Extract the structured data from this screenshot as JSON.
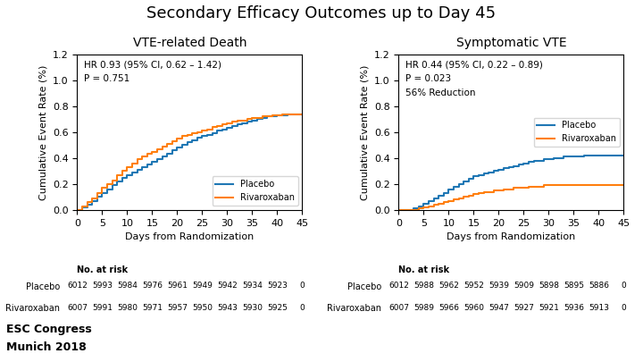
{
  "title": "Secondary Efficacy Outcomes up to Day 45",
  "annotations": [
    "ESC Congress",
    "Munich 2018"
  ],
  "chart_data": [
    {
      "type": "step",
      "title": "VTE-related Death",
      "xlabel": "Days from Randomization",
      "ylabel": "Cumulative Event Rate (%)",
      "xlim": [
        0,
        45
      ],
      "ylim": [
        0,
        1.2
      ],
      "xticks": [
        0,
        5,
        10,
        15,
        20,
        25,
        30,
        35,
        40,
        45
      ],
      "yticks": [
        0.0,
        0.2,
        0.4,
        0.6,
        0.8,
        1.0,
        1.2
      ],
      "legend": "lower right",
      "annotations": [
        "HR 0.93 (95% CI, 0.62 – 1.42)",
        "P = 0.751"
      ],
      "series": [
        {
          "name": "Placebo",
          "x": [
            0,
            1,
            2,
            3,
            4,
            5,
            6,
            7,
            8,
            9,
            10,
            11,
            12,
            13,
            14,
            15,
            16,
            17,
            18,
            19,
            20,
            21,
            22,
            23,
            24,
            25,
            26,
            27,
            28,
            29,
            30,
            31,
            32,
            33,
            34,
            35,
            36,
            37,
            38,
            39,
            40,
            41,
            42,
            43,
            44,
            45
          ],
          "values": [
            0.0,
            0.02,
            0.04,
            0.07,
            0.1,
            0.13,
            0.16,
            0.19,
            0.22,
            0.25,
            0.27,
            0.29,
            0.31,
            0.33,
            0.35,
            0.37,
            0.39,
            0.41,
            0.43,
            0.46,
            0.48,
            0.5,
            0.52,
            0.54,
            0.56,
            0.57,
            0.58,
            0.59,
            0.61,
            0.62,
            0.63,
            0.65,
            0.66,
            0.67,
            0.68,
            0.69,
            0.7,
            0.71,
            0.72,
            0.72,
            0.73,
            0.73,
            0.74,
            0.74,
            0.74,
            0.74
          ]
        },
        {
          "name": "Rivaroxaban",
          "x": [
            0,
            1,
            2,
            3,
            4,
            5,
            6,
            7,
            8,
            9,
            10,
            11,
            12,
            13,
            14,
            15,
            16,
            17,
            18,
            19,
            20,
            21,
            22,
            23,
            24,
            25,
            26,
            27,
            28,
            29,
            30,
            31,
            32,
            33,
            34,
            35,
            36,
            37,
            38,
            39,
            40,
            41,
            42,
            43,
            44,
            45
          ],
          "values": [
            0.0,
            0.03,
            0.06,
            0.09,
            0.13,
            0.17,
            0.2,
            0.23,
            0.27,
            0.3,
            0.33,
            0.36,
            0.39,
            0.41,
            0.43,
            0.45,
            0.47,
            0.49,
            0.51,
            0.53,
            0.55,
            0.57,
            0.58,
            0.59,
            0.6,
            0.61,
            0.62,
            0.64,
            0.65,
            0.66,
            0.67,
            0.68,
            0.69,
            0.69,
            0.7,
            0.71,
            0.71,
            0.72,
            0.72,
            0.73,
            0.73,
            0.74,
            0.74,
            0.74,
            0.74,
            0.74
          ]
        }
      ],
      "risk_table": {
        "title": "No. at risk",
        "rows": [
          {
            "name": "Placebo",
            "values": [
              6012,
              5993,
              5984,
              5976,
              5961,
              5949,
              5942,
              5934,
              5923,
              0
            ]
          },
          {
            "name": "Rivaroxaban",
            "values": [
              6007,
              5991,
              5980,
              5971,
              5957,
              5950,
              5943,
              5930,
              5925,
              0
            ]
          }
        ]
      }
    },
    {
      "type": "step",
      "title": "Symptomatic VTE",
      "xlabel": "Days from Randomization",
      "ylabel": "Cumulative Event Rate (%)",
      "xlim": [
        0,
        45
      ],
      "ylim": [
        0,
        1.2
      ],
      "xticks": [
        0,
        5,
        10,
        15,
        20,
        25,
        30,
        35,
        40,
        45
      ],
      "yticks": [
        0.0,
        0.2,
        0.4,
        0.6,
        0.8,
        1.0,
        1.2
      ],
      "legend": "center right",
      "annotations": [
        "HR 0.44 (95% CI, 0.22 – 0.89)",
        "P = 0.023",
        "56% Reduction"
      ],
      "series": [
        {
          "name": "Placebo",
          "x": [
            0,
            1,
            2,
            3,
            4,
            5,
            6,
            7,
            8,
            9,
            10,
            11,
            12,
            13,
            14,
            15,
            16,
            17,
            18,
            19,
            20,
            21,
            22,
            23,
            24,
            25,
            26,
            27,
            28,
            29,
            30,
            31,
            32,
            33,
            34,
            35,
            36,
            37,
            38,
            39,
            40,
            41,
            42,
            43,
            44,
            45
          ],
          "values": [
            0.0,
            0.0,
            0.0,
            0.01,
            0.03,
            0.05,
            0.07,
            0.09,
            0.11,
            0.13,
            0.16,
            0.18,
            0.2,
            0.22,
            0.24,
            0.26,
            0.27,
            0.28,
            0.29,
            0.3,
            0.31,
            0.32,
            0.33,
            0.34,
            0.35,
            0.36,
            0.37,
            0.38,
            0.38,
            0.39,
            0.39,
            0.4,
            0.4,
            0.41,
            0.41,
            0.41,
            0.41,
            0.42,
            0.42,
            0.42,
            0.42,
            0.42,
            0.42,
            0.42,
            0.42,
            0.42
          ]
        },
        {
          "name": "Rivaroxaban",
          "x": [
            0,
            1,
            2,
            3,
            4,
            5,
            6,
            7,
            8,
            9,
            10,
            11,
            12,
            13,
            14,
            15,
            16,
            17,
            18,
            19,
            20,
            21,
            22,
            23,
            24,
            25,
            26,
            27,
            28,
            29,
            30,
            31,
            32,
            33,
            34,
            35,
            36,
            37,
            38,
            39,
            40,
            41,
            42,
            43,
            44,
            45
          ],
          "values": [
            0.0,
            0.0,
            0.0,
            0.0,
            0.01,
            0.02,
            0.03,
            0.04,
            0.05,
            0.06,
            0.07,
            0.08,
            0.09,
            0.1,
            0.11,
            0.12,
            0.13,
            0.14,
            0.14,
            0.15,
            0.15,
            0.16,
            0.16,
            0.17,
            0.17,
            0.17,
            0.18,
            0.18,
            0.18,
            0.19,
            0.19,
            0.19,
            0.19,
            0.19,
            0.19,
            0.19,
            0.19,
            0.19,
            0.19,
            0.19,
            0.19,
            0.19,
            0.19,
            0.19,
            0.19,
            0.19
          ]
        }
      ],
      "risk_table": {
        "title": "No. at risk",
        "rows": [
          {
            "name": "Placebo",
            "values": [
              6012,
              5988,
              5962,
              5952,
              5939,
              5909,
              5898,
              5895,
              5886,
              0
            ]
          },
          {
            "name": "Rivaroxaban",
            "values": [
              6007,
              5989,
              5966,
              5960,
              5947,
              5927,
              5921,
              5936,
              5913,
              0
            ]
          }
        ]
      }
    }
  ]
}
